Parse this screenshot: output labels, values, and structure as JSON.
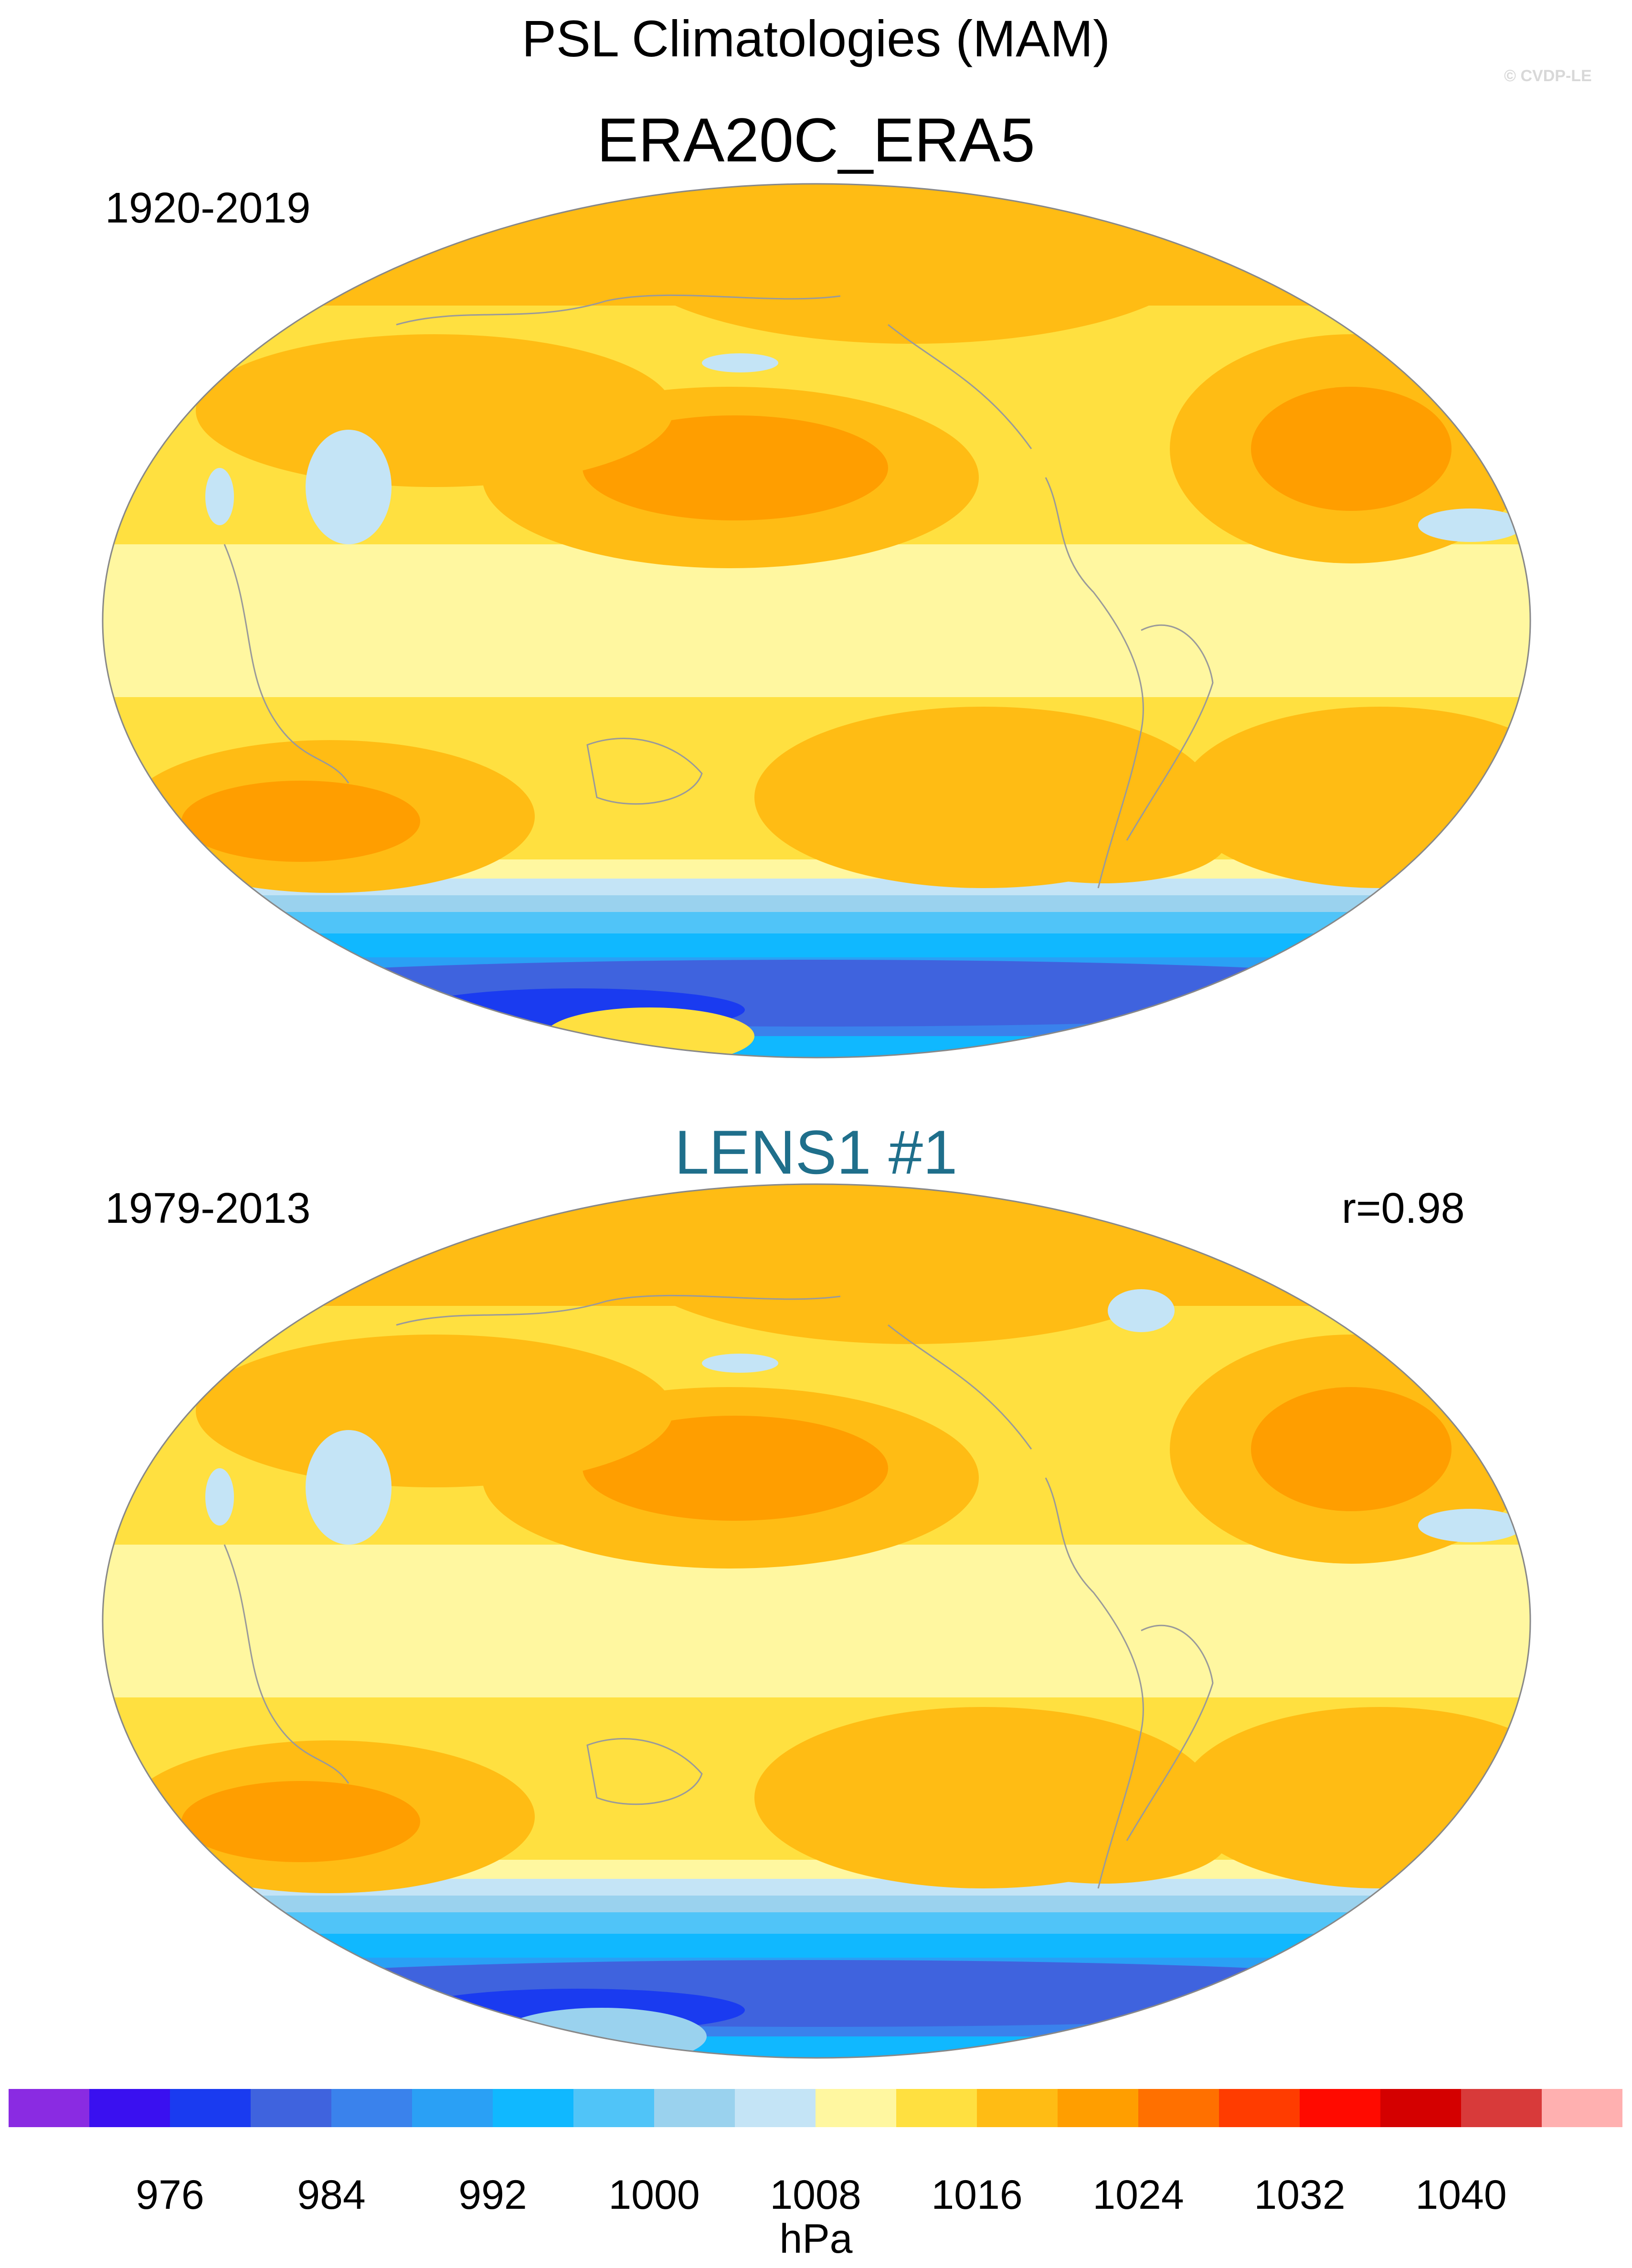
{
  "header": {
    "title": "PSL Climatologies (MAM)",
    "copyright": "© CVDP-LE"
  },
  "panels": [
    {
      "name": "ERA20C_ERA5",
      "period": "1920-2019",
      "correlation": "",
      "name_color": "#000000"
    },
    {
      "name": "LENS1 #1",
      "period": "1979-2013",
      "correlation": "r=0.98",
      "name_color": "#1f6f8b"
    }
  ],
  "map": {
    "projection": "robinson",
    "central_longitude": 180
  },
  "colorbar": {
    "units": "hPa",
    "colors": [
      "#8a2be2",
      "#3a10f0",
      "#1a3bf0",
      "#3f63de",
      "#3a82ec",
      "#2aa0f5",
      "#10b8ff",
      "#50c4f8",
      "#9ad2ee",
      "#c4e4f6",
      "#fff7a0",
      "#ffe040",
      "#ffbc14",
      "#ff9e00",
      "#ff7000",
      "#ff3c00",
      "#ff0a00",
      "#d40000",
      "#d83a3a",
      "#ffb0b0"
    ],
    "tick_labels": [
      "976",
      "984",
      "992",
      "1000",
      "1008",
      "1016",
      "1024",
      "1032",
      "1040"
    ]
  }
}
